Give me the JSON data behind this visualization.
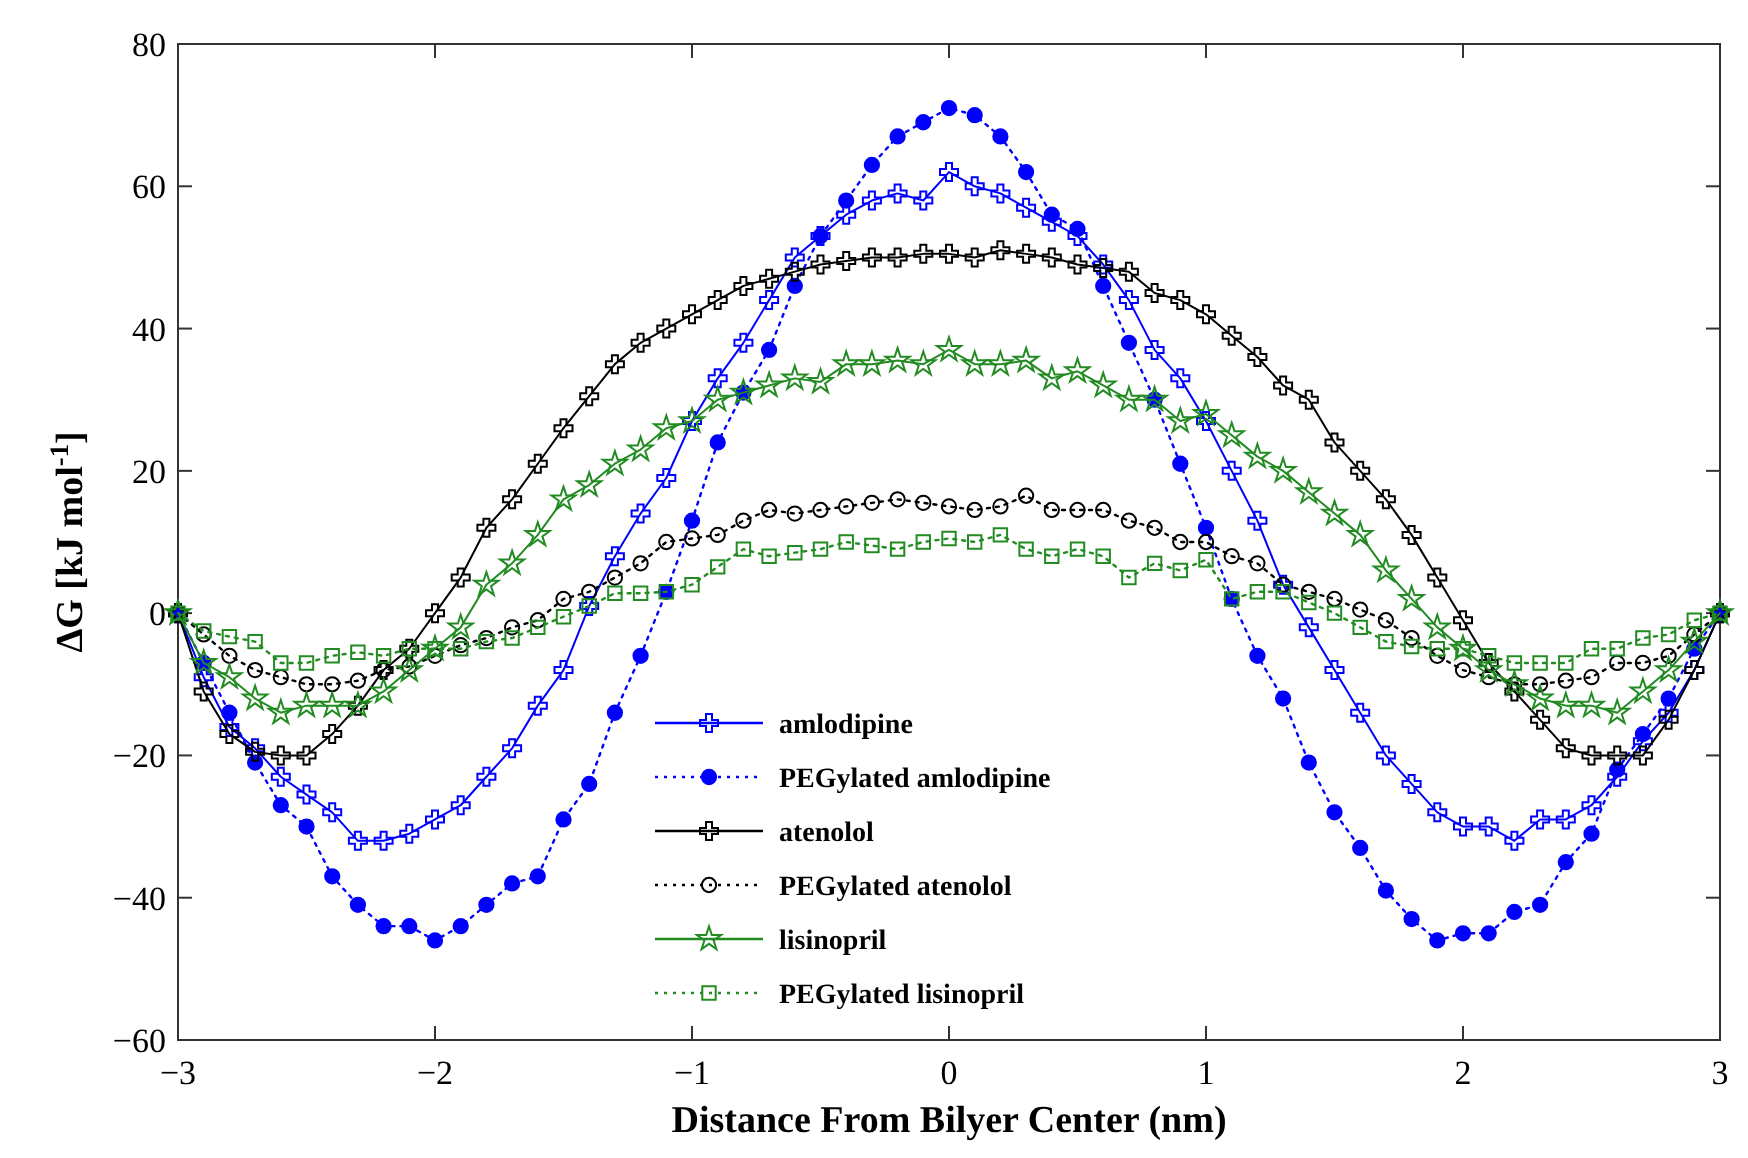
{
  "chart_data": {
    "type": "line",
    "xlabel": "Distance From Bilyer Center (nm)",
    "ylabel": "ΔG [kJ mol$^{-1}$]",
    "x": [
      -3,
      -2.9,
      -2.8,
      -2.7,
      -2.6,
      -2.5,
      -2.4,
      -2.3,
      -2.2,
      -2.1,
      -2,
      -1.9,
      -1.8,
      -1.7,
      -1.6,
      -1.5,
      -1.4,
      -1.3,
      -1.2,
      -1.1,
      -1,
      -0.9,
      -0.8,
      -0.7,
      -0.6,
      -0.5,
      -0.4,
      -0.3,
      -0.2,
      -0.1,
      0,
      0.1,
      0.2,
      0.3,
      0.4,
      0.5,
      0.6,
      0.7,
      0.8,
      0.9,
      1,
      1.1,
      1.2,
      1.3,
      1.4,
      1.5,
      1.6,
      1.7,
      1.8,
      1.9,
      2,
      2.1,
      2.2,
      2.3,
      2.4,
      2.5,
      2.6,
      2.7,
      2.8,
      2.9,
      3
    ],
    "xlim": [
      -3,
      3
    ],
    "xticks": [
      -3,
      -2,
      -1,
      0,
      1,
      2,
      3
    ],
    "ylim": [
      -60,
      80
    ],
    "yticks": [
      -60,
      -40,
      -20,
      0,
      20,
      40,
      60,
      80
    ],
    "grid": false,
    "legend": "bottom",
    "series": [
      {
        "name": "amlodipine",
        "color": "#0000ff",
        "marker": "cross",
        "line_style": "solid",
        "values": [
          0,
          -9,
          -16,
          -19,
          -23,
          -25.5,
          -28,
          -32,
          -32,
          -31,
          -29,
          -27,
          -23,
          -19,
          -13,
          -8,
          1,
          8,
          14,
          19,
          27,
          33,
          38,
          44,
          50,
          53,
          56,
          58,
          59,
          58,
          62,
          60,
          59,
          57,
          55,
          53,
          49,
          44,
          37,
          33,
          27,
          20,
          13,
          4,
          -2,
          -8,
          -14,
          -20,
          -24,
          -28,
          -30,
          -30,
          -32,
          -29,
          -29,
          -27,
          -23,
          -18,
          -14,
          -8,
          0
        ]
      },
      {
        "name": "PEGylated amlodipine",
        "color": "#0000ff",
        "marker": "circle",
        "line_style": "dotted",
        "values": [
          0,
          -7,
          -14,
          -21,
          -27,
          -30,
          -37,
          -41,
          -44,
          -44,
          -46,
          -44,
          -41,
          -38,
          -37,
          -29,
          -24,
          -14,
          -6,
          3,
          13,
          24,
          31,
          37,
          46,
          53,
          58,
          63,
          67,
          69,
          71,
          70,
          67,
          62,
          56,
          54,
          46,
          38,
          30,
          21,
          12,
          2,
          -6,
          -12,
          -21,
          -28,
          -33,
          -39,
          -43,
          -46,
          -45,
          -45,
          -42,
          -41,
          -35,
          -31,
          -22,
          -17,
          -12,
          -5,
          0
        ]
      },
      {
        "name": "atenolol",
        "color": "#000000",
        "marker": "cross",
        "line_style": "solid",
        "values": [
          0,
          -11,
          -17,
          -19.5,
          -20,
          -20,
          -17,
          -13,
          -8,
          -5,
          0,
          5,
          12,
          16,
          21,
          26,
          30.5,
          35,
          38,
          40,
          42,
          44,
          46,
          47,
          48,
          49,
          49.5,
          50,
          50,
          50.5,
          50.5,
          50,
          51,
          50.5,
          50,
          49,
          48.5,
          48,
          45,
          44,
          42,
          39,
          36,
          32,
          30,
          24,
          20,
          16,
          11,
          5,
          -1,
          -7,
          -11,
          -15,
          -19,
          -20,
          -20,
          -20,
          -15,
          -8,
          0
        ]
      },
      {
        "name": "PEGylated atenolol",
        "color": "#000000",
        "marker": "circle",
        "line_style": "dotted",
        "values": [
          0,
          -3,
          -6,
          -8,
          -9,
          -10,
          -10,
          -9.5,
          -8,
          -7.5,
          -6,
          -4.5,
          -3.5,
          -2,
          -1,
          2,
          3,
          5,
          7,
          10,
          10.5,
          11,
          13,
          14.5,
          14,
          14.5,
          15,
          15.5,
          16,
          15.5,
          15,
          14.5,
          15,
          16.5,
          14.5,
          14.5,
          14.5,
          13,
          12,
          10,
          10,
          8,
          7,
          4,
          3,
          2,
          0.5,
          -1,
          -3.5,
          -6,
          -8,
          -9,
          -10,
          -10,
          -9.5,
          -9,
          -7,
          -7,
          -6,
          -3,
          0
        ]
      },
      {
        "name": "lisinopril",
        "color": "#228b22",
        "marker": "star",
        "line_style": "solid",
        "values": [
          0,
          -7,
          -9,
          -12,
          -14,
          -13,
          -13,
          -13,
          -11,
          -8,
          -5,
          -2,
          4,
          7,
          11,
          16,
          18,
          21,
          23,
          26,
          27,
          30,
          31,
          32,
          33,
          32.5,
          35,
          35,
          35.5,
          35,
          37,
          35,
          35,
          35.5,
          33,
          34,
          32,
          30,
          30,
          27,
          28,
          25,
          22,
          20,
          17,
          14,
          11,
          6,
          2,
          -2,
          -5,
          -8,
          -10,
          -12,
          -13,
          -13,
          -14,
          -11,
          -8,
          -4,
          0
        ]
      },
      {
        "name": "PEGylated lisinopril",
        "color": "#228b22",
        "marker": "square",
        "line_style": "dotted",
        "values": [
          0,
          -2.5,
          -3.3,
          -4,
          -7,
          -7,
          -6,
          -5.5,
          -6,
          -5,
          -5,
          -5,
          -4,
          -3.5,
          -2,
          -0.5,
          1,
          2.8,
          2.8,
          3,
          4,
          6.5,
          9,
          8,
          8.5,
          9,
          10,
          9.5,
          9,
          10,
          10.5,
          10,
          11,
          9,
          8,
          9,
          8,
          5,
          7,
          6,
          7.5,
          2,
          3,
          3,
          1.5,
          0,
          -2,
          -4,
          -4.7,
          -5,
          -5,
          -6,
          -7,
          -7,
          -7,
          -5,
          -5,
          -3.5,
          -3,
          -1,
          0
        ]
      }
    ]
  }
}
